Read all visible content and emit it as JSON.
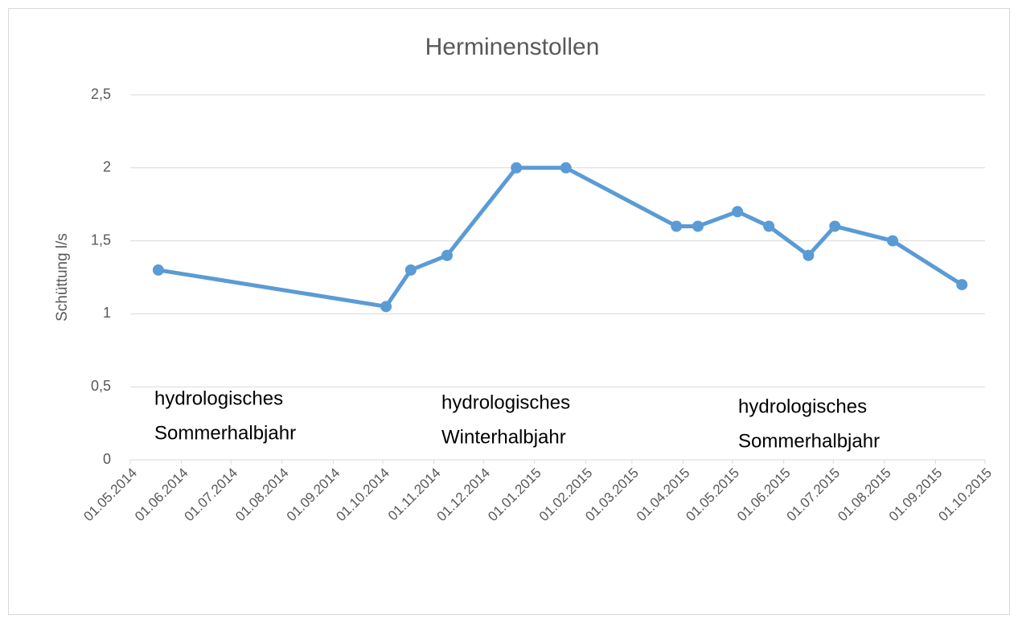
{
  "chart_data": {
    "type": "line",
    "title": "Herminenstollen",
    "y_label": "Schüttung l/s",
    "x": [
      "2014-05-18",
      "2014-10-03",
      "2014-10-18",
      "2014-11-09",
      "2014-12-21",
      "2015-01-20",
      "2015-03-28",
      "2015-04-10",
      "2015-05-04",
      "2015-05-23",
      "2015-06-16",
      "2015-07-02",
      "2015-08-06",
      "2015-09-17"
    ],
    "values": [
      1.3,
      1.05,
      1.3,
      1.4,
      2,
      2,
      1.6,
      1.6,
      1.7,
      1.6,
      1.4,
      1.6,
      1.5,
      1.2
    ],
    "color": "#5b9bd5",
    "xlim": [
      "2014-05-01",
      "2015-10-01"
    ],
    "xticks": [
      {
        "value": "2014-05-01",
        "label": "01.05.2014"
      },
      {
        "value": "2014-06-01",
        "label": "01.06.2014"
      },
      {
        "value": "2014-07-01",
        "label": "01.07.2014"
      },
      {
        "value": "2014-08-01",
        "label": "01.08.2014"
      },
      {
        "value": "2014-09-01",
        "label": "01.09.2014"
      },
      {
        "value": "2014-10-01",
        "label": "01.10.2014"
      },
      {
        "value": "2014-11-01",
        "label": "01.11.2014"
      },
      {
        "value": "2014-12-01",
        "label": "01.12.2014"
      },
      {
        "value": "2015-01-01",
        "label": "01.01.2015"
      },
      {
        "value": "2015-02-01",
        "label": "01.02.2015"
      },
      {
        "value": "2015-03-01",
        "label": "01.03.2015"
      },
      {
        "value": "2015-04-01",
        "label": "01.04.2015"
      },
      {
        "value": "2015-05-01",
        "label": "01.05.2015"
      },
      {
        "value": "2015-06-01",
        "label": "01.06.2015"
      },
      {
        "value": "2015-07-01",
        "label": "01.07.2015"
      },
      {
        "value": "2015-08-01",
        "label": "01.08.2015"
      },
      {
        "value": "2015-09-01",
        "label": "01.09.2015"
      },
      {
        "value": "2015-10-01",
        "label": "01.10.2015"
      }
    ],
    "ylim": [
      0,
      2.5
    ],
    "yticks": [
      0,
      {
        "value": 0.5,
        "label": "0,5"
      },
      1,
      {
        "value": 1.5,
        "label": "1,5"
      },
      2,
      {
        "value": 2.5,
        "label": "2,5"
      }
    ],
    "grid": true,
    "annotations": [
      {
        "lines": [
          "hydrologisches",
          "Sommerhalbjahr"
        ]
      },
      {
        "lines": [
          "hydrologisches",
          "Winterhalbjahr"
        ]
      },
      {
        "lines": [
          "hydrologisches",
          "Sommerhalbjahr"
        ]
      }
    ]
  }
}
